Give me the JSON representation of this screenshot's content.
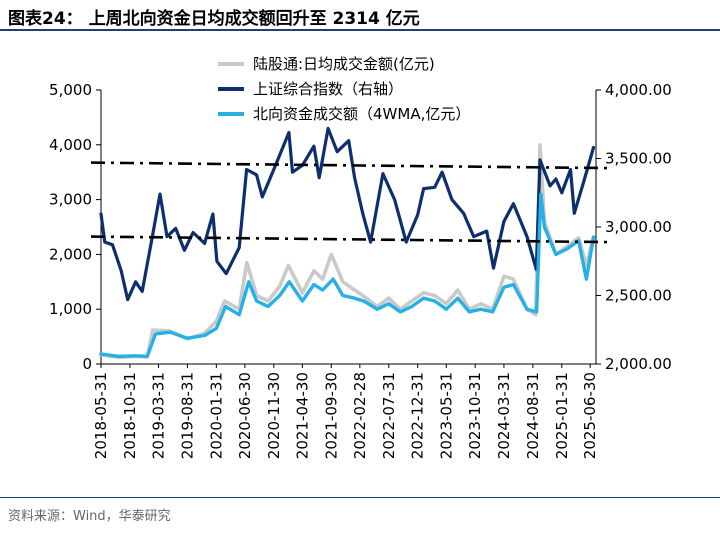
{
  "title": "图表24：  上周北向资金日均成交额回升至 2314 亿元",
  "source": "资料来源：Wind，华泰研究",
  "colors": {
    "turnover": "#c9c9c9",
    "index": "#0d2f6f",
    "northbound": "#26b0e6",
    "refline": "#000000"
  },
  "chart_data": {
    "type": "line",
    "xlim": [
      "2018-05-31",
      "2025-07-31"
    ],
    "x_ticks": [
      "2018-05-31",
      "2018-10-31",
      "2019-03-31",
      "2019-08-31",
      "2020-01-31",
      "2020-06-30",
      "2020-11-30",
      "2021-04-30",
      "2021-09-30",
      "2022-02-28",
      "2022-07-31",
      "2022-12-31",
      "2023-05-31",
      "2023-10-31",
      "2024-03-31",
      "2024-08-31",
      "2025-01-31",
      "2025-06-30"
    ],
    "y_left": {
      "lim": [
        0,
        5000
      ],
      "ticks": [
        "0",
        "1,000",
        "2,000",
        "3,000",
        "4,000",
        "5,000"
      ]
    },
    "y_right": {
      "lim": [
        2000,
        4000
      ],
      "ticks": [
        "2,000.00",
        "2,500.00",
        "3,000.00",
        "3,500.00",
        "4,000.00"
      ]
    },
    "legend": [
      "陆股通:日均成交金额(亿元)",
      "上证综合指数（右轴）",
      "北向资金成交额（4WMA,亿元）"
    ],
    "series": [
      {
        "name": "陆股通:日均成交金额(亿元)",
        "axis": "left",
        "x": [
          "2018-05-31",
          "2018-08-31",
          "2018-11-30",
          "2019-01-31",
          "2019-03-01",
          "2019-05-31",
          "2019-08-31",
          "2019-11-30",
          "2020-01-31",
          "2020-03-15",
          "2020-05-31",
          "2020-07-10",
          "2020-08-31",
          "2020-10-31",
          "2020-12-31",
          "2021-02-15",
          "2021-04-30",
          "2021-06-30",
          "2021-08-15",
          "2021-09-30",
          "2021-11-30",
          "2022-01-31",
          "2022-03-15",
          "2022-05-31",
          "2022-07-31",
          "2022-09-30",
          "2022-11-30",
          "2023-01-31",
          "2023-03-31",
          "2023-05-31",
          "2023-07-31",
          "2023-09-30",
          "2023-11-30",
          "2024-01-31",
          "2024-03-31",
          "2024-05-20",
          "2024-07-31",
          "2024-09-15",
          "2024-10-08",
          "2024-10-31",
          "2024-12-31",
          "2025-02-28",
          "2025-04-30",
          "2025-06-10",
          "2025-07-18"
        ],
        "values": [
          170,
          120,
          140,
          130,
          620,
          600,
          460,
          560,
          780,
          1150,
          1000,
          1850,
          1250,
          1150,
          1420,
          1800,
          1300,
          1700,
          1550,
          2000,
          1500,
          1350,
          1250,
          1050,
          1200,
          1000,
          1150,
          1300,
          1250,
          1100,
          1350,
          1000,
          1100,
          1000,
          1600,
          1550,
          1000,
          900,
          4000,
          2600,
          2000,
          2150,
          2300,
          1800,
          2314
        ]
      },
      {
        "name": "上证综合指数（右轴）",
        "axis": "right",
        "x": [
          "2018-05-31",
          "2018-06-20",
          "2018-07-31",
          "2018-09-15",
          "2018-10-19",
          "2018-11-30",
          "2019-01-04",
          "2019-02-28",
          "2019-04-08",
          "2019-05-15",
          "2019-06-30",
          "2019-08-15",
          "2019-09-30",
          "2019-11-30",
          "2020-01-13",
          "2020-02-03",
          "2020-03-23",
          "2020-05-31",
          "2020-07-09",
          "2020-08-31",
          "2020-09-30",
          "2020-11-30",
          "2021-02-18",
          "2021-03-09",
          "2021-04-30",
          "2021-06-30",
          "2021-07-28",
          "2021-09-13",
          "2021-10-31",
          "2021-12-31",
          "2022-01-31",
          "2022-03-15",
          "2022-04-26",
          "2022-06-30",
          "2022-08-31",
          "2022-10-31",
          "2022-12-31",
          "2023-01-31",
          "2023-03-31",
          "2023-05-09",
          "2023-06-30",
          "2023-08-31",
          "2023-10-23",
          "2023-12-31",
          "2024-02-05",
          "2024-03-31",
          "2024-05-20",
          "2024-07-31",
          "2024-09-18",
          "2024-10-08",
          "2024-11-30",
          "2024-12-31",
          "2025-01-31",
          "2025-03-18",
          "2025-04-07",
          "2025-05-31",
          "2025-07-18"
        ],
        "values": [
          3095,
          2890,
          2870,
          2680,
          2470,
          2600,
          2530,
          2940,
          3240,
          2930,
          2990,
          2830,
          2960,
          2880,
          3095,
          2750,
          2660,
          2850,
          3420,
          3380,
          3220,
          3420,
          3690,
          3400,
          3450,
          3590,
          3360,
          3720,
          3550,
          3630,
          3360,
          3100,
          2890,
          3390,
          3200,
          2890,
          3090,
          3280,
          3290,
          3400,
          3200,
          3100,
          2930,
          2970,
          2700,
          3040,
          3170,
          2930,
          2690,
          3490,
          3300,
          3350,
          3250,
          3420,
          3100,
          3350,
          3580
        ]
      },
      {
        "name": "北向资金成交额（4WMA,亿元）",
        "axis": "left",
        "x": [
          "2018-05-31",
          "2018-08-31",
          "2018-11-30",
          "2019-01-31",
          "2019-03-15",
          "2019-05-31",
          "2019-08-31",
          "2019-11-30",
          "2020-01-31",
          "2020-03-20",
          "2020-05-31",
          "2020-07-20",
          "2020-08-31",
          "2020-10-31",
          "2020-12-31",
          "2021-02-20",
          "2021-04-30",
          "2021-06-30",
          "2021-08-15",
          "2021-10-10",
          "2021-11-30",
          "2022-01-31",
          "2022-03-20",
          "2022-05-31",
          "2022-07-31",
          "2022-09-30",
          "2022-11-30",
          "2023-01-31",
          "2023-03-31",
          "2023-05-31",
          "2023-07-31",
          "2023-09-30",
          "2023-11-30",
          "2024-01-31",
          "2024-03-31",
          "2024-05-20",
          "2024-07-31",
          "2024-09-20",
          "2024-10-12",
          "2024-10-31",
          "2024-12-31",
          "2025-02-28",
          "2025-04-30",
          "2025-06-10",
          "2025-07-18"
        ],
        "values": [
          180,
          140,
          150,
          140,
          550,
          580,
          470,
          520,
          650,
          1050,
          900,
          1500,
          1150,
          1050,
          1250,
          1500,
          1150,
          1450,
          1350,
          1550,
          1250,
          1200,
          1150,
          1000,
          1100,
          950,
          1050,
          1200,
          1150,
          1000,
          1200,
          950,
          1000,
          950,
          1400,
          1450,
          1000,
          950,
          3100,
          2500,
          2000,
          2100,
          2250,
          1550,
          2314
        ]
      }
    ],
    "reference_lines": [
      {
        "axis": "right",
        "from": [
          "2018-05-31",
          3470
        ],
        "to": [
          "2025-07-31",
          3430
        ]
      },
      {
        "axis": "right",
        "from": [
          "2018-05-31",
          2930
        ],
        "to": [
          "2025-07-31",
          2890
        ]
      }
    ]
  }
}
